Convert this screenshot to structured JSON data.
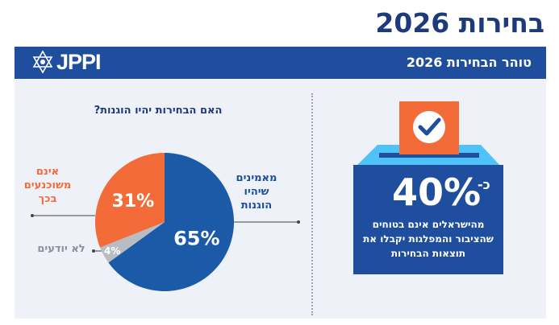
{
  "page": {
    "title": "בחירות 2026",
    "header_title": "טוהר הבחירות 2026",
    "logo_text": "JPPI",
    "colors": {
      "navy": "#1e4e9d",
      "orange": "#f26b38",
      "gray": "#b9bcc3",
      "light_blue": "#4fc3f7"
    }
  },
  "stat": {
    "prefix": "כ-",
    "value": "40%",
    "text": "מהישראלים אינם בטוחים שהציבור והמפלגות יקבלו את תוצאות הבחירות"
  },
  "chart_data": {
    "type": "pie",
    "title": "האם הבחירות יהיו הוגנות?",
    "slices": [
      {
        "label": "מאמינים שיהיו הוגנות",
        "value": 65,
        "display": "65%",
        "color": "#1b5aa6"
      },
      {
        "label": "לא יודעים",
        "value": 4,
        "display": "4%",
        "color": "#b9bcc3"
      },
      {
        "label": "אינם משוכנעים בכך",
        "value": 31,
        "display": "31%",
        "color": "#f26b38"
      }
    ]
  }
}
